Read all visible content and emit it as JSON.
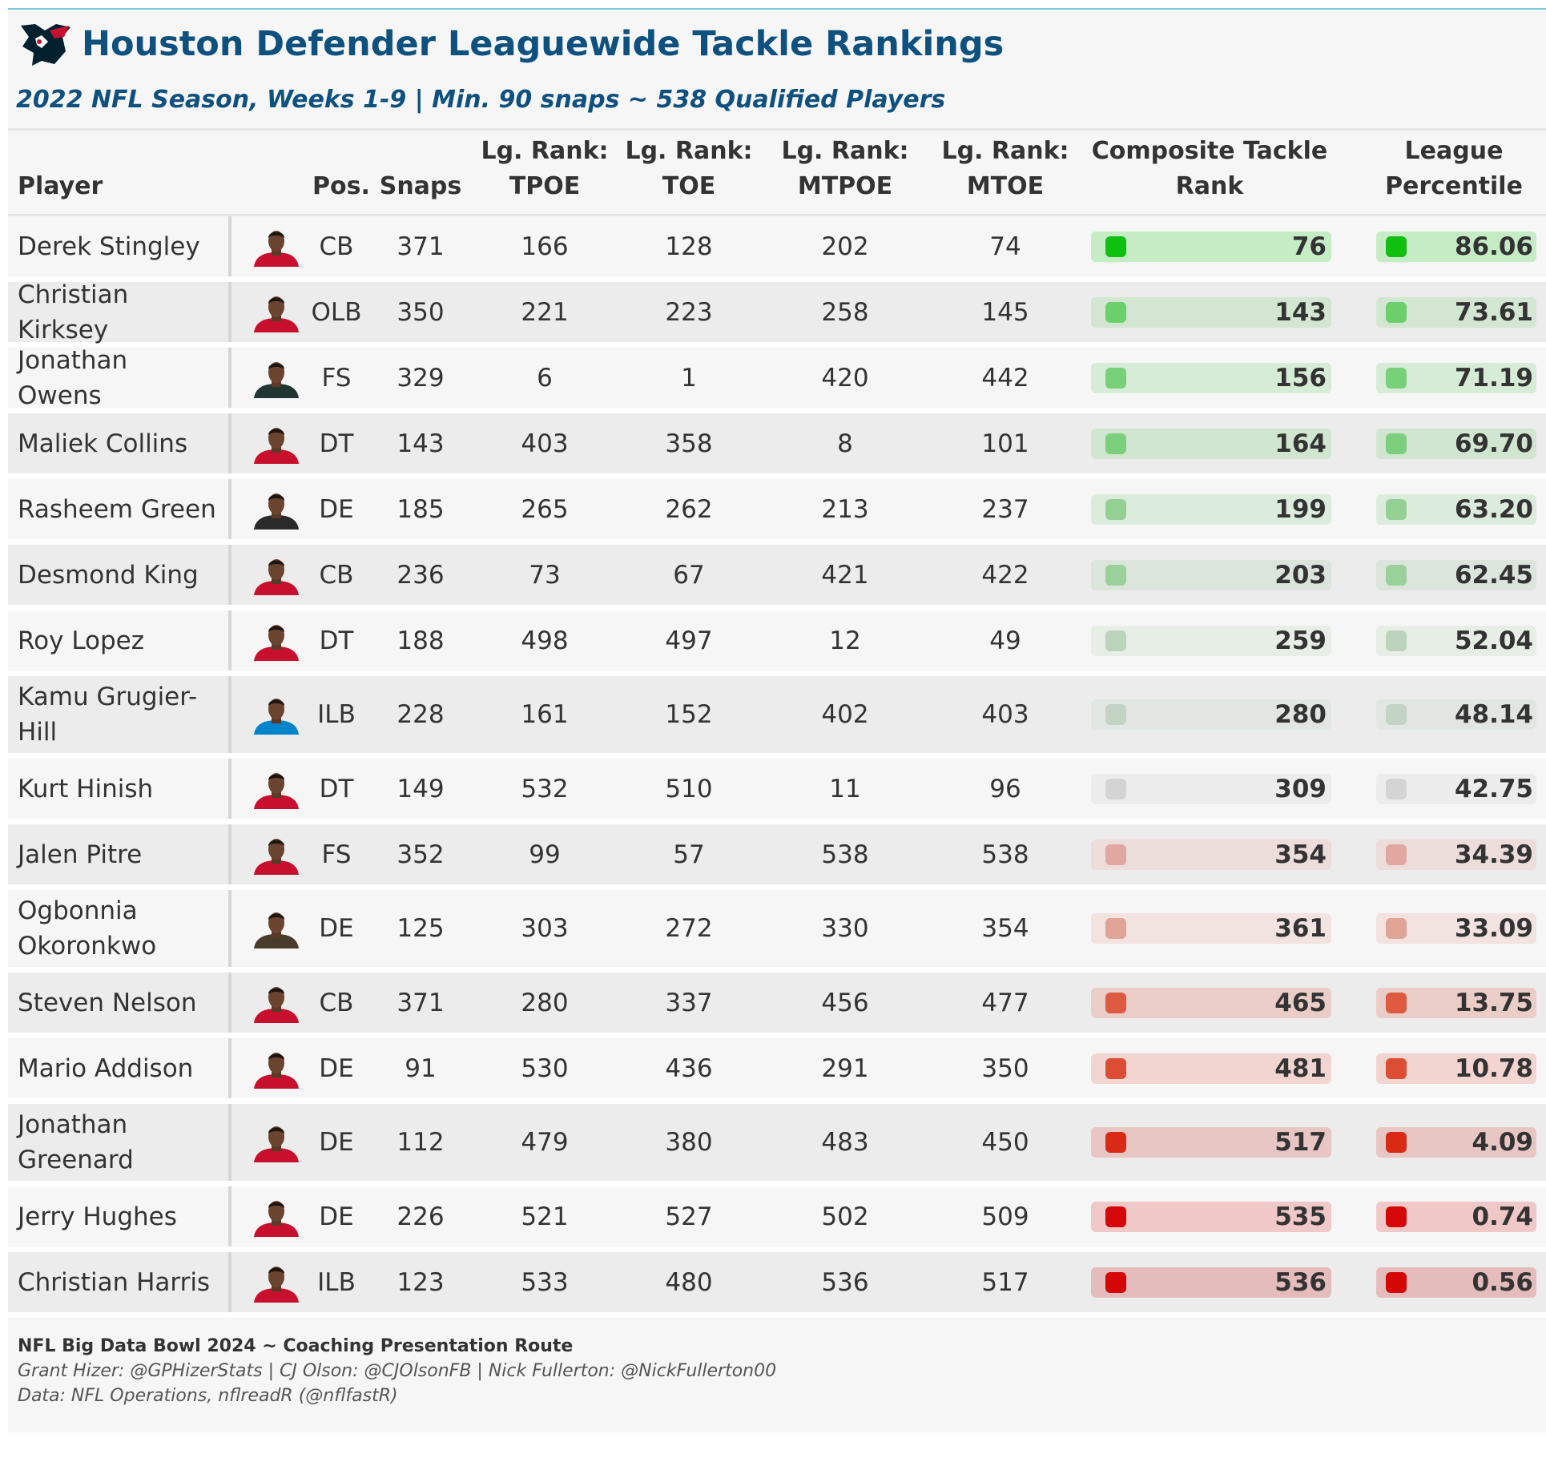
{
  "header": {
    "title": "Houston Defender Leaguewide Tackle Rankings",
    "subtitle": "2022 NFL Season, Weeks 1-9 | Min. 90 snaps ~ 538 Qualified Players",
    "logo_icon": "texans-bull-icon"
  },
  "columns": {
    "player": "Player",
    "pos": "Pos.",
    "snaps": "Snaps",
    "tpoe": [
      "Lg. Rank:",
      "TPOE"
    ],
    "toe": [
      "Lg. Rank:",
      "TOE"
    ],
    "mtpoe": [
      "Lg. Rank:",
      "MTPOE"
    ],
    "mtoe": [
      "Lg. Rank:",
      "MTOE"
    ],
    "composite": [
      "Composite Tackle",
      "Rank"
    ],
    "percentile": [
      "League",
      "Percentile"
    ]
  },
  "rows": [
    {
      "name": "Derek Stingley",
      "pos": "CB",
      "snaps": "371",
      "tpoe": "166",
      "toe": "128",
      "mtpoe": "202",
      "mtoe": "74",
      "composite": "76",
      "percentile": "86.06",
      "jersey": "#c8102e",
      "sq": "#10c010",
      "bar": "#c6ecc6"
    },
    {
      "name": "Christian Kirksey",
      "pos": "OLB",
      "snaps": "350",
      "tpoe": "221",
      "toe": "223",
      "mtpoe": "258",
      "mtoe": "145",
      "composite": "143",
      "percentile": "73.61",
      "jersey": "#c8102e",
      "sq": "#6bd06b",
      "bar": "#d2e6d2"
    },
    {
      "name": "Jonathan Owens",
      "pos": "FS",
      "snaps": "329",
      "tpoe": "6",
      "toe": "1",
      "mtpoe": "420",
      "mtoe": "442",
      "composite": "156",
      "percentile": "71.19",
      "jersey": "#203731",
      "sq": "#78d078",
      "bar": "#d6ecd6"
    },
    {
      "name": "Maliek Collins",
      "pos": "DT",
      "snaps": "143",
      "tpoe": "403",
      "toe": "358",
      "mtpoe": "8",
      "mtoe": "101",
      "composite": "164",
      "percentile": "69.70",
      "jersey": "#c8102e",
      "sq": "#7ccf7c",
      "bar": "#d0e6d0"
    },
    {
      "name": "Rasheem Green",
      "pos": "DE",
      "snaps": "185",
      "tpoe": "265",
      "toe": "262",
      "mtpoe": "213",
      "mtoe": "237",
      "composite": "199",
      "percentile": "63.20",
      "jersey": "#2a2a2a",
      "sq": "#94d094",
      "bar": "#dcecdc"
    },
    {
      "name": "Desmond King",
      "pos": "CB",
      "snaps": "236",
      "tpoe": "73",
      "toe": "67",
      "mtpoe": "421",
      "mtoe": "422",
      "composite": "203",
      "percentile": "62.45",
      "jersey": "#c8102e",
      "sq": "#9ad09a",
      "bar": "#dbe5db"
    },
    {
      "name": "Roy Lopez",
      "pos": "DT",
      "snaps": "188",
      "tpoe": "498",
      "toe": "497",
      "mtpoe": "12",
      "mtoe": "49",
      "composite": "259",
      "percentile": "52.04",
      "jersey": "#c8102e",
      "sq": "#bcd4bc",
      "bar": "#e6eee6"
    },
    {
      "name": "Kamu Grugier-Hill",
      "pos": "ILB",
      "snaps": "228",
      "tpoe": "161",
      "toe": "152",
      "mtpoe": "402",
      "mtoe": "403",
      "composite": "280",
      "percentile": "48.14",
      "jersey": "#0085ca",
      "sq": "#c4d4c4",
      "bar": "#e2e6e2"
    },
    {
      "name": "Kurt Hinish",
      "pos": "DT",
      "snaps": "149",
      "tpoe": "532",
      "toe": "510",
      "mtpoe": "11",
      "mtoe": "96",
      "composite": "309",
      "percentile": "42.75",
      "jersey": "#c8102e",
      "sq": "#d4d4d4",
      "bar": "#ececec"
    },
    {
      "name": "Jalen Pitre",
      "pos": "FS",
      "snaps": "352",
      "tpoe": "99",
      "toe": "57",
      "mtpoe": "538",
      "mtoe": "538",
      "composite": "354",
      "percentile": "34.39",
      "jersey": "#c8102e",
      "sq": "#e0a8a0",
      "bar": "#ecdcda"
    },
    {
      "name": "Ogbonnia Okoronkwo",
      "pos": "DE",
      "snaps": "125",
      "tpoe": "303",
      "toe": "272",
      "mtpoe": "330",
      "mtoe": "354",
      "composite": "361",
      "percentile": "33.09",
      "jersey": "#4a3c2c",
      "sq": "#e0a496",
      "bar": "#f2e2e0"
    },
    {
      "name": "Steven Nelson",
      "pos": "CB",
      "snaps": "371",
      "tpoe": "280",
      "toe": "337",
      "mtpoe": "456",
      "mtoe": "477",
      "composite": "465",
      "percentile": "13.75",
      "jersey": "#c8102e",
      "sq": "#de5a40",
      "bar": "#ebcdc8"
    },
    {
      "name": "Mario Addison",
      "pos": "DE",
      "snaps": "91",
      "tpoe": "530",
      "toe": "436",
      "mtpoe": "291",
      "mtoe": "350",
      "composite": "481",
      "percentile": "10.78",
      "jersey": "#c8102e",
      "sq": "#dc4e34",
      "bar": "#f2d4d0"
    },
    {
      "name": "Jonathan Greenard",
      "pos": "DE",
      "snaps": "112",
      "tpoe": "479",
      "toe": "380",
      "mtpoe": "483",
      "mtoe": "450",
      "composite": "517",
      "percentile": "4.09",
      "jersey": "#c8102e",
      "sq": "#d82a14",
      "bar": "#e8c6c4"
    },
    {
      "name": "Jerry Hughes",
      "pos": "DE",
      "snaps": "226",
      "tpoe": "521",
      "toe": "527",
      "mtpoe": "502",
      "mtoe": "509",
      "composite": "535",
      "percentile": "0.74",
      "jersey": "#c8102e",
      "sq": "#d40808",
      "bar": "#f0c8c8"
    },
    {
      "name": "Christian Harris",
      "pos": "ILB",
      "snaps": "123",
      "tpoe": "533",
      "toe": "480",
      "mtpoe": "536",
      "mtoe": "517",
      "composite": "536",
      "percentile": "0.56",
      "jersey": "#c8102e",
      "sq": "#d40606",
      "bar": "#e4bcbc"
    }
  ],
  "footer": {
    "line1": "NFL Big Data Bowl 2024 ~ Coaching Presentation Route",
    "line2": "Grant Hizer: @GPHizerStats | CJ Olson: @CJOlsonFB | Nick Fullerton: @NickFullerton00",
    "line3": "Data: NFL Operations, nflreadR (@nflfastR)"
  }
}
